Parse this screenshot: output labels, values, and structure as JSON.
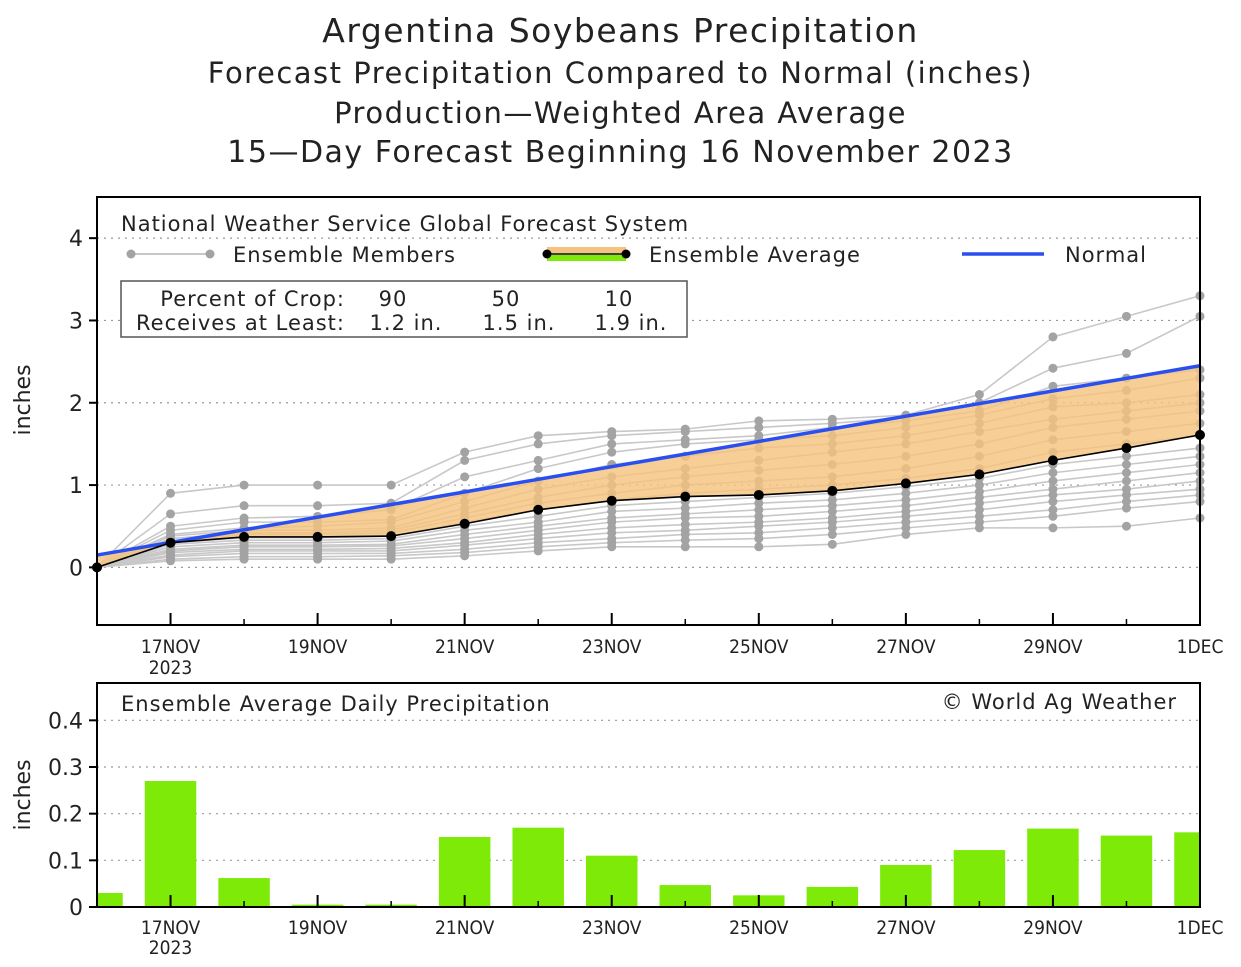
{
  "titles": {
    "line1": "Argentina Soybeans Precipitation",
    "line2": "Forecast Precipitation Compared to Normal (inches)",
    "line3": "Production—Weighted Area Average",
    "line4": "15—Day Forecast Beginning 16 November 2023"
  },
  "legend": {
    "model": "National Weather Service Global Forecast System",
    "members": "Ensemble Members",
    "average": "Ensemble Average",
    "normal": "Normal"
  },
  "crop_table": {
    "row1_label": "Percent of Crop:",
    "row2_label": "Receives at Least:",
    "percents": [
      "90",
      "50",
      "10"
    ],
    "amounts": [
      "1.2 in.",
      "1.5 in.",
      "1.9 in."
    ]
  },
  "bottom_panel": {
    "title": "Ensemble Average Daily Precipitation",
    "credit": "© World Ag Weather"
  },
  "colors": {
    "normal": "#2a4ff0",
    "average_fill": "#f4c37f",
    "daily_bar": "#7eea08",
    "member": "#c8c8c8",
    "member_dot": "#a3a3a3"
  },
  "chart_data": [
    {
      "type": "line",
      "title": "Forecast Precipitation Compared to Normal (inches)",
      "ylabel": "inches",
      "xlabel": "",
      "ylim": [
        -0.7,
        4.5
      ],
      "yticks": [
        "0",
        "1",
        "2",
        "3",
        "4"
      ],
      "xlim": [
        16,
        31
      ],
      "x_day_numbers": [
        16,
        17,
        18,
        19,
        20,
        21,
        22,
        23,
        24,
        25,
        26,
        27,
        28,
        29,
        30,
        31
      ],
      "xtick_labels": [
        "17NOV",
        "19NOV",
        "21NOV",
        "23NOV",
        "25NOV",
        "27NOV",
        "29NOV",
        "1DEC"
      ],
      "xtick_days": [
        17,
        19,
        21,
        23,
        25,
        27,
        29,
        31
      ],
      "xtick_year": "2023",
      "series": [
        {
          "name": "Ensemble Average",
          "values": [
            0.0,
            0.3,
            0.37,
            0.37,
            0.38,
            0.53,
            0.7,
            0.81,
            0.86,
            0.88,
            0.93,
            1.02,
            1.13,
            1.3,
            1.45,
            1.61
          ]
        },
        {
          "name": "Normal",
          "x": [
            16,
            31
          ],
          "values": [
            0.15,
            2.45
          ]
        },
        {
          "name": "Ensemble Member 1",
          "values": [
            0.0,
            0.9,
            1.0,
            1.0,
            1.0,
            1.4,
            1.6,
            1.65,
            1.68,
            1.78,
            1.8,
            1.85,
            2.1,
            2.8,
            3.05,
            3.3
          ]
        },
        {
          "name": "Ensemble Member 2",
          "values": [
            0.0,
            0.65,
            0.75,
            0.75,
            0.78,
            1.3,
            1.5,
            1.6,
            1.65,
            1.7,
            1.75,
            1.82,
            2.0,
            2.42,
            2.6,
            3.05
          ]
        },
        {
          "name": "Ensemble Member 3",
          "values": [
            0.0,
            0.5,
            0.6,
            0.62,
            0.7,
            1.1,
            1.3,
            1.5,
            1.55,
            1.6,
            1.7,
            1.78,
            1.9,
            2.2,
            2.3,
            2.4
          ]
        },
        {
          "name": "Ensemble Member 4",
          "values": [
            0.0,
            0.45,
            0.55,
            0.55,
            0.58,
            0.9,
            1.2,
            1.4,
            1.5,
            1.55,
            1.6,
            1.7,
            1.85,
            2.05,
            2.15,
            2.3
          ]
        },
        {
          "name": "Ensemble Member 5",
          "values": [
            0.0,
            0.4,
            0.48,
            0.5,
            0.55,
            0.8,
            1.05,
            1.25,
            1.35,
            1.45,
            1.5,
            1.6,
            1.75,
            1.95,
            2.0,
            2.1
          ]
        },
        {
          "name": "Ensemble Member 6",
          "values": [
            0.0,
            0.38,
            0.45,
            0.45,
            0.48,
            0.72,
            0.95,
            1.1,
            1.2,
            1.3,
            1.4,
            1.5,
            1.65,
            1.8,
            1.9,
            2.0
          ]
        },
        {
          "name": "Ensemble Member 7",
          "values": [
            0.0,
            0.35,
            0.42,
            0.42,
            0.45,
            0.65,
            0.85,
            1.0,
            1.1,
            1.18,
            1.25,
            1.35,
            1.5,
            1.7,
            1.8,
            1.9
          ]
        },
        {
          "name": "Ensemble Member 8",
          "values": [
            0.0,
            0.32,
            0.4,
            0.4,
            0.42,
            0.6,
            0.78,
            0.9,
            1.0,
            1.05,
            1.1,
            1.2,
            1.35,
            1.55,
            1.65,
            1.75
          ]
        },
        {
          "name": "Ensemble Member 9",
          "values": [
            0.0,
            0.3,
            0.36,
            0.36,
            0.38,
            0.55,
            0.7,
            0.82,
            0.9,
            0.95,
            1.0,
            1.08,
            1.2,
            1.4,
            1.5,
            1.6
          ]
        },
        {
          "name": "Ensemble Member 10",
          "values": [
            0.0,
            0.28,
            0.33,
            0.33,
            0.35,
            0.5,
            0.62,
            0.75,
            0.8,
            0.85,
            0.9,
            0.98,
            1.08,
            1.25,
            1.35,
            1.45
          ]
        },
        {
          "name": "Ensemble Member 11",
          "values": [
            0.0,
            0.25,
            0.3,
            0.3,
            0.32,
            0.45,
            0.55,
            0.68,
            0.72,
            0.78,
            0.82,
            0.9,
            1.0,
            1.15,
            1.25,
            1.35
          ]
        },
        {
          "name": "Ensemble Member 12",
          "values": [
            0.0,
            0.22,
            0.27,
            0.27,
            0.28,
            0.4,
            0.5,
            0.6,
            0.65,
            0.7,
            0.75,
            0.82,
            0.92,
            1.05,
            1.15,
            1.25
          ]
        },
        {
          "name": "Ensemble Member 13",
          "values": [
            0.0,
            0.2,
            0.25,
            0.25,
            0.26,
            0.35,
            0.45,
            0.55,
            0.6,
            0.62,
            0.68,
            0.75,
            0.85,
            0.95,
            1.05,
            1.15
          ]
        },
        {
          "name": "Ensemble Member 14",
          "values": [
            0.0,
            0.18,
            0.22,
            0.22,
            0.23,
            0.3,
            0.4,
            0.48,
            0.52,
            0.55,
            0.6,
            0.68,
            0.78,
            0.88,
            0.95,
            1.05
          ]
        },
        {
          "name": "Ensemble Member 15",
          "values": [
            0.0,
            0.15,
            0.2,
            0.2,
            0.2,
            0.27,
            0.35,
            0.42,
            0.45,
            0.5,
            0.55,
            0.62,
            0.7,
            0.8,
            0.88,
            0.95
          ]
        },
        {
          "name": "Ensemble Member 16",
          "values": [
            0.0,
            0.13,
            0.17,
            0.17,
            0.17,
            0.22,
            0.3,
            0.35,
            0.4,
            0.42,
            0.48,
            0.55,
            0.62,
            0.7,
            0.8,
            0.88
          ]
        },
        {
          "name": "Ensemble Member 17",
          "values": [
            0.0,
            0.1,
            0.13,
            0.13,
            0.14,
            0.18,
            0.25,
            0.3,
            0.33,
            0.35,
            0.4,
            0.48,
            0.55,
            0.62,
            0.72,
            0.8
          ]
        },
        {
          "name": "Ensemble Member 18",
          "values": [
            0.0,
            0.08,
            0.1,
            0.1,
            0.1,
            0.14,
            0.2,
            0.25,
            0.25,
            0.25,
            0.28,
            0.4,
            0.48,
            0.48,
            0.5,
            0.6
          ]
        }
      ]
    },
    {
      "type": "bar",
      "title": "Ensemble Average Daily Precipitation",
      "ylabel": "inches",
      "xlabel": "",
      "ylim": [
        0,
        0.48
      ],
      "yticks": [
        "0",
        "0.1",
        "0.2",
        "0.3",
        "0.4"
      ],
      "xlim": [
        16,
        31
      ],
      "x_day_numbers": [
        16,
        17,
        18,
        19,
        20,
        21,
        22,
        23,
        24,
        25,
        26,
        27,
        28,
        29,
        30,
        31
      ],
      "xtick_labels": [
        "17NOV",
        "19NOV",
        "21NOV",
        "23NOV",
        "25NOV",
        "27NOV",
        "29NOV",
        "1DEC"
      ],
      "xtick_days": [
        17,
        19,
        21,
        23,
        25,
        27,
        29,
        31
      ],
      "xtick_year": "2023",
      "values": [
        0.03,
        0.27,
        0.062,
        0.005,
        0.005,
        0.15,
        0.17,
        0.11,
        0.047,
        0.025,
        0.043,
        0.09,
        0.122,
        0.168,
        0.153,
        0.16
      ]
    }
  ]
}
